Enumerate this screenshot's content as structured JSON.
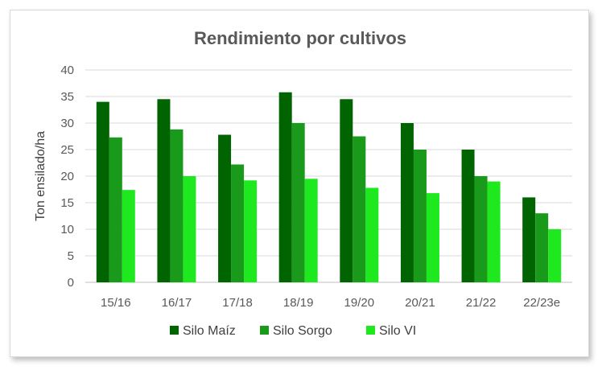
{
  "chart_data": {
    "type": "bar",
    "title": "Rendimiento por cultivos",
    "xlabel": "",
    "ylabel": "Ton ensilado/ha",
    "ylim": [
      0,
      40
    ],
    "yticks": [
      0,
      5,
      10,
      15,
      20,
      25,
      30,
      35,
      40
    ],
    "categories": [
      "15/16",
      "16/17",
      "17/18",
      "18/19",
      "19/20",
      "20/21",
      "21/22",
      "22/23e"
    ],
    "series": [
      {
        "name": "Silo Maíz",
        "color": "#006400",
        "values": [
          34,
          34.5,
          27.8,
          35.8,
          34.5,
          30,
          25,
          16
        ]
      },
      {
        "name": "Silo Sorgo",
        "color": "#1a9a1a",
        "values": [
          27.3,
          28.8,
          22.2,
          30,
          27.5,
          25,
          20,
          13
        ]
      },
      {
        "name": "Silo VI",
        "color": "#1ee81e",
        "values": [
          17.4,
          20,
          19.2,
          19.5,
          17.8,
          16.8,
          19,
          10
        ]
      }
    ],
    "grid": true,
    "legend_position": "bottom"
  }
}
